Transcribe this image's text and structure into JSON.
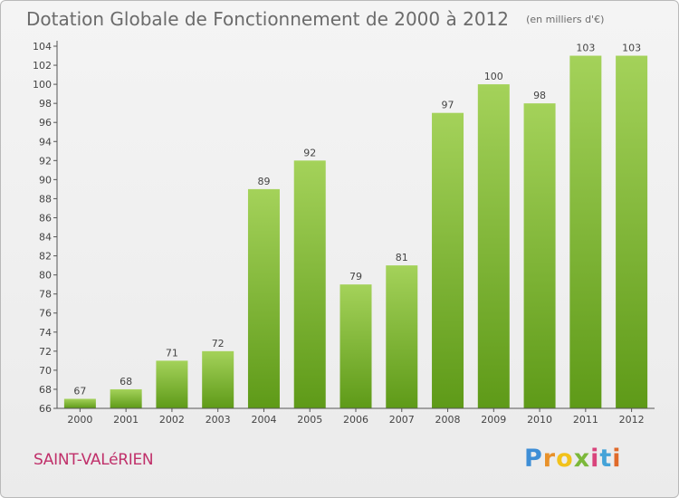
{
  "chart_data": {
    "type": "bar",
    "title": "Dotation Globale de Fonctionnement de 2000 à 2012",
    "subtitle": "(en milliers d'€)",
    "categories": [
      "2000",
      "2001",
      "2002",
      "2003",
      "2004",
      "2005",
      "2006",
      "2007",
      "2008",
      "2009",
      "2010",
      "2011",
      "2012"
    ],
    "values": [
      67,
      68,
      71,
      72,
      89,
      92,
      79,
      81,
      97,
      100,
      98,
      103,
      103
    ],
    "ylim": [
      66,
      104
    ],
    "yticks": [
      66,
      68,
      70,
      72,
      74,
      76,
      78,
      80,
      82,
      84,
      86,
      88,
      90,
      92,
      94,
      96,
      98,
      100,
      102,
      104
    ],
    "grid": false,
    "colors": {
      "bar_top": "#a4d25a",
      "bar_bottom": "#5e9a18",
      "text": "#444444"
    }
  },
  "footer": {
    "commune": "SAINT-VALéRIEN",
    "brand": [
      "P",
      "r",
      "o",
      "x",
      "i",
      "t",
      "i"
    ]
  }
}
